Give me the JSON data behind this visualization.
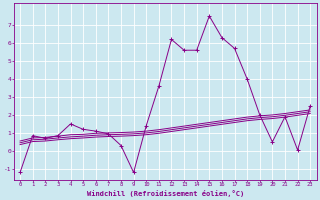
{
  "xlabel": "Windchill (Refroidissement éolien,°C)",
  "xlim": [
    -0.5,
    23.5
  ],
  "ylim": [
    -1.6,
    8.2
  ],
  "yticks": [
    -1,
    0,
    1,
    2,
    3,
    4,
    5,
    6,
    7
  ],
  "xticks": [
    0,
    1,
    2,
    3,
    4,
    5,
    6,
    7,
    8,
    9,
    10,
    11,
    12,
    13,
    14,
    15,
    16,
    17,
    18,
    19,
    20,
    21,
    22,
    23
  ],
  "bg_color": "#cce8f0",
  "line_color": "#880088",
  "hours": [
    0,
    1,
    2,
    3,
    4,
    5,
    6,
    7,
    8,
    9,
    10,
    11,
    12,
    13,
    14,
    15,
    16,
    17,
    18,
    19,
    20,
    21,
    22,
    23
  ],
  "main_line": [
    -1.2,
    0.85,
    0.7,
    0.85,
    1.5,
    1.2,
    1.1,
    0.95,
    0.3,
    -1.2,
    1.4,
    3.6,
    6.2,
    5.6,
    5.6,
    7.5,
    6.3,
    5.7,
    4.0,
    2.0,
    0.5,
    1.9,
    0.05,
    2.5
  ],
  "smooth_line1": [
    0.55,
    0.72,
    0.75,
    0.82,
    0.9,
    0.92,
    0.98,
    1.0,
    1.02,
    1.05,
    1.1,
    1.18,
    1.28,
    1.38,
    1.48,
    1.58,
    1.68,
    1.78,
    1.88,
    1.95,
    2.0,
    2.08,
    2.18,
    2.28
  ],
  "smooth_line2": [
    0.45,
    0.62,
    0.65,
    0.72,
    0.78,
    0.82,
    0.87,
    0.9,
    0.92,
    0.95,
    1.0,
    1.08,
    1.18,
    1.28,
    1.38,
    1.48,
    1.58,
    1.68,
    1.78,
    1.85,
    1.9,
    1.98,
    2.08,
    2.18
  ],
  "smooth_line3": [
    0.35,
    0.52,
    0.55,
    0.62,
    0.68,
    0.72,
    0.77,
    0.8,
    0.82,
    0.85,
    0.9,
    0.98,
    1.08,
    1.18,
    1.28,
    1.38,
    1.48,
    1.58,
    1.68,
    1.75,
    1.8,
    1.88,
    1.98,
    2.08
  ]
}
